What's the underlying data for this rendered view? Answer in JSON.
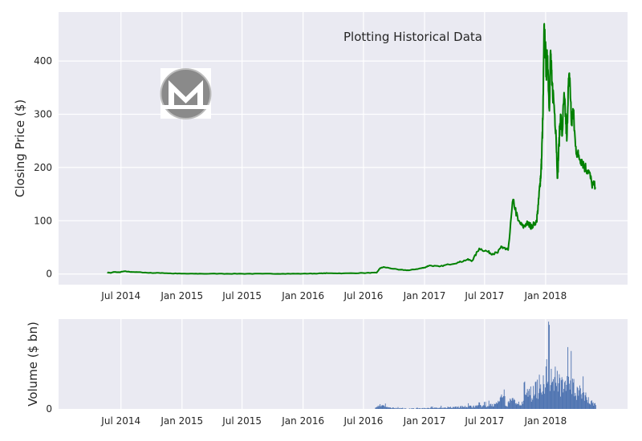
{
  "chart_data": [
    {
      "type": "line",
      "title": "Plotting Historical Data",
      "xlabel": "",
      "ylabel": "Closing Price ($)",
      "x_tick_labels": [
        "Jul 2014",
        "Jan 2015",
        "Jul 2015",
        "Jan 2016",
        "Jul 2016",
        "Jan 2017",
        "Jul 2017",
        "Jan 2018"
      ],
      "y_ticks": [
        0,
        100,
        200,
        300,
        400
      ],
      "ylim": [
        -20,
        492
      ],
      "xlim": [
        "2013-12-25",
        "2018-09-05"
      ],
      "grid": true,
      "line_color": "#008000",
      "logo": "monero-logo",
      "series": [
        {
          "x": [
            "2014-05-21",
            "2014-06-01",
            "2014-06-10",
            "2014-06-25",
            "2014-07-10",
            "2014-08-01",
            "2014-09-01",
            "2014-10-01",
            "2014-11-01",
            "2014-12-01",
            "2015-01-15",
            "2015-03-01",
            "2015-05-01",
            "2015-07-01",
            "2015-09-01",
            "2015-11-01",
            "2016-01-01",
            "2016-02-15",
            "2016-03-15",
            "2016-05-01",
            "2016-07-01",
            "2016-08-10",
            "2016-08-20",
            "2016-09-01",
            "2016-10-15",
            "2016-11-15",
            "2016-12-15",
            "2017-01-01",
            "2017-01-15",
            "2017-02-15",
            "2017-03-15",
            "2017-04-15",
            "2017-05-10",
            "2017-05-25",
            "2017-06-15",
            "2017-07-10",
            "2017-07-25",
            "2017-08-10",
            "2017-08-20",
            "2017-08-25",
            "2017-09-10",
            "2017-09-25",
            "2017-10-10",
            "2017-10-25",
            "2017-11-05",
            "2017-11-15",
            "2017-11-20",
            "2017-12-05",
            "2017-12-10",
            "2017-12-15",
            "2017-12-18",
            "2017-12-20",
            "2017-12-24",
            "2017-12-28",
            "2018-01-03",
            "2018-01-07",
            "2018-01-12",
            "2018-01-16",
            "2018-01-20",
            "2018-01-25",
            "2018-02-01",
            "2018-02-06",
            "2018-02-10",
            "2018-02-15",
            "2018-02-20",
            "2018-02-25",
            "2018-03-02",
            "2018-03-06",
            "2018-03-10",
            "2018-03-15",
            "2018-03-20",
            "2018-03-25",
            "2018-04-01",
            "2018-04-10",
            "2018-04-20",
            "2018-04-30",
            "2018-05-10",
            "2018-05-20",
            "2018-05-31"
          ],
          "values": [
            3,
            2,
            4,
            3,
            5,
            4,
            3,
            2,
            2,
            1,
            0.5,
            0.5,
            0.6,
            0.5,
            0.5,
            0.5,
            0.6,
            1.0,
            1.5,
            1.3,
            1.8,
            2.5,
            11,
            13,
            8,
            7,
            10,
            12,
            16,
            14,
            18,
            22,
            27,
            25,
            48,
            42,
            38,
            40,
            52,
            48,
            45,
            140,
            100,
            88,
            95,
            92,
            88,
            100,
            130,
            170,
            190,
            215,
            300,
            470,
            380,
            410,
            310,
            420,
            355,
            330,
            270,
            180,
            240,
            300,
            260,
            330,
            300,
            250,
            350,
            368,
            280,
            310,
            240,
            220,
            215,
            200,
            195,
            170,
            163
          ]
        }
      ]
    },
    {
      "type": "bar",
      "title": "",
      "xlabel": "",
      "ylabel": "Volume ($ bn)",
      "x_tick_labels": [
        "Jul 2014",
        "Jan 2015",
        "Jul 2015",
        "Jan 2016",
        "Jul 2016",
        "Jan 2017",
        "Jul 2017",
        "Jan 2018"
      ],
      "y_ticks": [
        0
      ],
      "ylim": [
        0,
        1
      ],
      "bar_color": "#4c72b0",
      "grid": true,
      "volume_profile": {
        "x": [
          "2014-05-21",
          "2016-08-01",
          "2016-08-20",
          "2016-09-10",
          "2016-11-01",
          "2017-01-01",
          "2017-03-01",
          "2017-05-01",
          "2017-07-01",
          "2017-08-01",
          "2017-08-25",
          "2017-09-01",
          "2017-09-20",
          "2017-10-15",
          "2017-11-05",
          "2017-11-25",
          "2017-12-10",
          "2017-12-25",
          "2018-01-05",
          "2018-01-20",
          "2018-02-05",
          "2018-02-20",
          "2018-03-10",
          "2018-03-20",
          "2018-04-05",
          "2018-04-20",
          "2018-05-10",
          "2018-05-31"
        ],
        "values": [
          0.0,
          0.0,
          0.06,
          0.02,
          0.005,
          0.01,
          0.02,
          0.03,
          0.04,
          0.06,
          0.16,
          0.04,
          0.12,
          0.08,
          0.2,
          0.22,
          0.32,
          0.38,
          0.5,
          0.45,
          0.4,
          0.38,
          0.35,
          0.33,
          0.25,
          0.2,
          0.12,
          0.05
        ]
      }
    }
  ]
}
